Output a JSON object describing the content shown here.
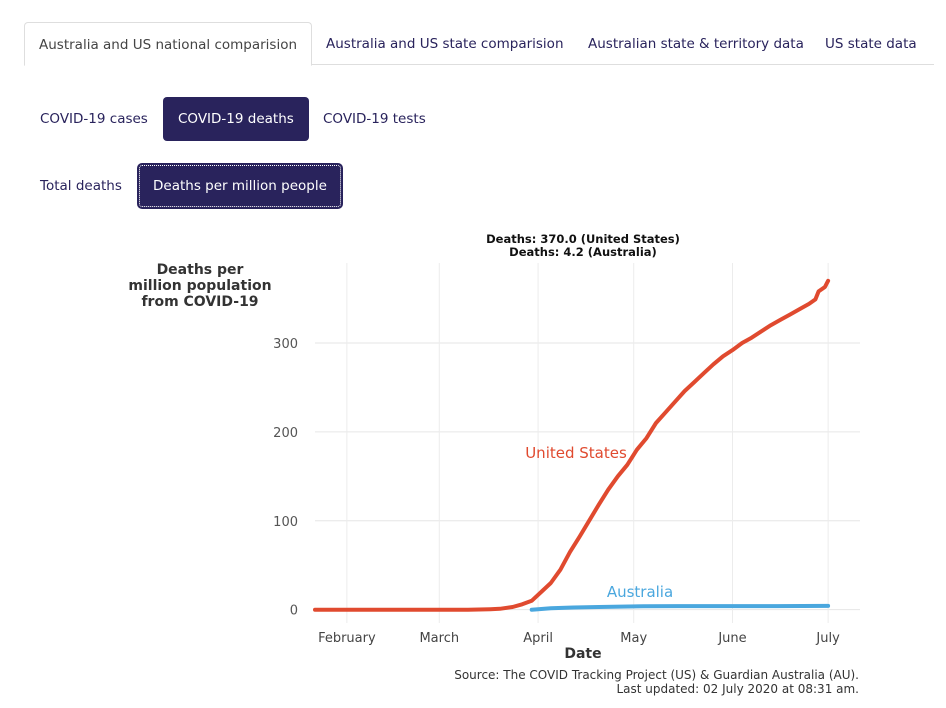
{
  "tabs": [
    {
      "label": "Australia and US national comparision",
      "active": true
    },
    {
      "label": "Australia and US state comparision",
      "active": false
    },
    {
      "label": "Australian state & territory data",
      "active": false
    },
    {
      "label": "US state data",
      "active": false
    }
  ],
  "metric_buttons": [
    {
      "label": "COVID-19 cases",
      "active": false
    },
    {
      "label": "COVID-19 deaths",
      "active": true
    },
    {
      "label": "COVID-19 tests",
      "active": false
    }
  ],
  "measure_buttons": [
    {
      "label": "Total deaths",
      "active": false
    },
    {
      "label": "Deaths per million people",
      "active": true
    }
  ],
  "colors": {
    "accent": "#29235c",
    "us": "#e04a2f",
    "australia": "#4aa7de"
  },
  "chart_data": {
    "type": "line",
    "ylabel_lines": [
      "Deaths per",
      "million population",
      "from COVID-19"
    ],
    "xlabel": "Date",
    "tooltip": [
      "Deaths: 370.0 (United States)",
      "Deaths: 4.2 (Australia)"
    ],
    "x_ticks": [
      "February",
      "March",
      "April",
      "May",
      "June",
      "July"
    ],
    "x_tick_dates": [
      "2020-02-01",
      "2020-03-01",
      "2020-04-01",
      "2020-05-01",
      "2020-06-01",
      "2020-07-01"
    ],
    "xlim": [
      "2020-01-22",
      "2020-07-11"
    ],
    "y_ticks": [
      0,
      100,
      200,
      300
    ],
    "ylim": [
      -15,
      390
    ],
    "grid": true,
    "series": [
      {
        "name": "United States",
        "color": "#e04a2f",
        "points": [
          [
            "2020-01-22",
            0
          ],
          [
            "2020-02-15",
            0
          ],
          [
            "2020-03-01",
            0
          ],
          [
            "2020-03-10",
            0
          ],
          [
            "2020-03-17",
            0.5
          ],
          [
            "2020-03-20",
            1
          ],
          [
            "2020-03-24",
            3
          ],
          [
            "2020-03-27",
            6
          ],
          [
            "2020-03-30",
            10
          ],
          [
            "2020-04-02",
            20
          ],
          [
            "2020-04-05",
            30
          ],
          [
            "2020-04-08",
            45
          ],
          [
            "2020-04-11",
            65
          ],
          [
            "2020-04-14",
            82
          ],
          [
            "2020-04-17",
            100
          ],
          [
            "2020-04-20",
            118
          ],
          [
            "2020-04-23",
            135
          ],
          [
            "2020-04-26",
            150
          ],
          [
            "2020-04-29",
            163
          ],
          [
            "2020-05-02",
            180
          ],
          [
            "2020-05-05",
            193
          ],
          [
            "2020-05-08",
            210
          ],
          [
            "2020-05-11",
            222
          ],
          [
            "2020-05-14",
            234
          ],
          [
            "2020-05-17",
            246
          ],
          [
            "2020-05-20",
            256
          ],
          [
            "2020-05-23",
            266
          ],
          [
            "2020-05-26",
            276
          ],
          [
            "2020-05-29",
            285
          ],
          [
            "2020-06-01",
            292
          ],
          [
            "2020-06-04",
            300
          ],
          [
            "2020-06-07",
            306
          ],
          [
            "2020-06-10",
            313
          ],
          [
            "2020-06-13",
            320
          ],
          [
            "2020-06-16",
            326
          ],
          [
            "2020-06-19",
            332
          ],
          [
            "2020-06-22",
            338
          ],
          [
            "2020-06-25",
            344
          ],
          [
            "2020-06-27",
            349
          ],
          [
            "2020-06-28",
            358
          ],
          [
            "2020-06-30",
            363
          ],
          [
            "2020-07-01",
            370
          ]
        ]
      },
      {
        "name": "Australia",
        "color": "#4aa7de",
        "points": [
          [
            "2020-03-30",
            0
          ],
          [
            "2020-04-05",
            1.5
          ],
          [
            "2020-04-12",
            2.4
          ],
          [
            "2020-04-20",
            3.0
          ],
          [
            "2020-04-27",
            3.5
          ],
          [
            "2020-05-04",
            3.8
          ],
          [
            "2020-05-15",
            4.0
          ],
          [
            "2020-06-01",
            4.0
          ],
          [
            "2020-06-15",
            4.0
          ],
          [
            "2020-07-01",
            4.2
          ]
        ]
      }
    ],
    "source_lines": [
      "Source: The COVID Tracking Project (US) & Guardian Australia (AU).",
      "Last updated: 02 July 2020 at 08:31 am."
    ]
  }
}
